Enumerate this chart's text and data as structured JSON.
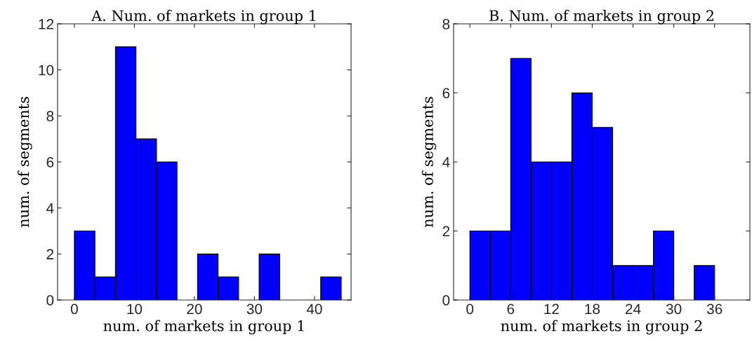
{
  "chart_data": [
    {
      "type": "histogram",
      "title": "A. Num. of markets in group 1",
      "xlabel": "num. of markets in group 1",
      "ylabel": "num. of segments",
      "bins": [
        0,
        3.42,
        6.84,
        10.26,
        13.68,
        17.1,
        20.52,
        23.94,
        27.36,
        30.78,
        34.2,
        37.62,
        41.04,
        44.46
      ],
      "values": [
        3,
        1,
        11,
        7,
        6,
        0,
        2,
        1,
        0,
        2,
        0,
        0,
        1
      ],
      "color": "#0000ff",
      "xlim": [
        -2.8,
        46.1
      ],
      "xticks": [
        0,
        10,
        20,
        30,
        40
      ],
      "ylim": [
        0,
        12
      ],
      "yticks": [
        0,
        2,
        4,
        6,
        8,
        10,
        12
      ],
      "grid": false,
      "legend": false
    },
    {
      "type": "histogram",
      "title": "B. Num. of markets in group 2",
      "xlabel": "num. of markets in group 2",
      "ylabel": "num. of segments",
      "bins": [
        0,
        3,
        6,
        9,
        12,
        15,
        18,
        21,
        24,
        27,
        30,
        33,
        36,
        39
      ],
      "values": [
        2,
        2,
        7,
        4,
        4,
        6,
        5,
        1,
        1,
        2,
        0,
        1,
        0
      ],
      "color": "#0000ff",
      "xlim": [
        -2.4,
        41.2
      ],
      "xticks": [
        0,
        6,
        12,
        18,
        24,
        30,
        36
      ],
      "ylim": [
        0,
        8
      ],
      "yticks": [
        0,
        2,
        4,
        6,
        8
      ],
      "grid": false,
      "legend": false
    }
  ]
}
